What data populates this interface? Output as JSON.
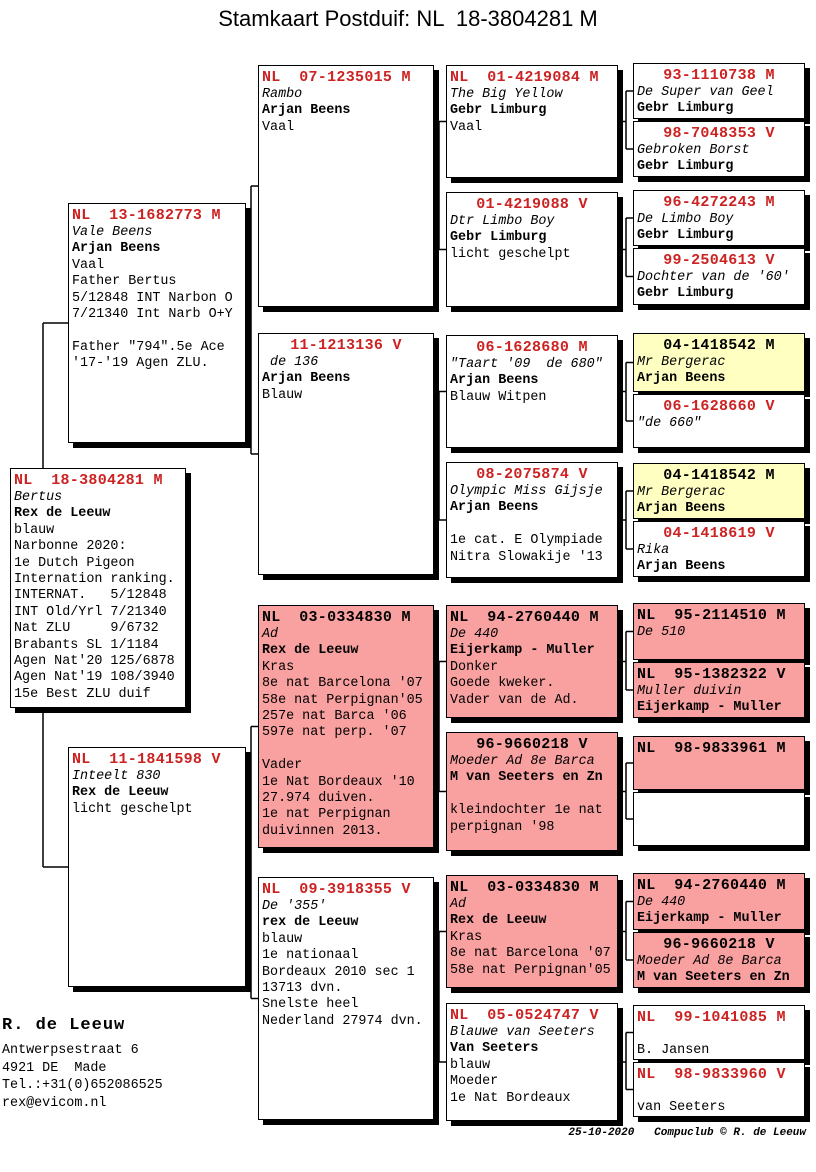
{
  "title": "Stamkaart Postduif: NL  18-3804281 M",
  "colors": {
    "header_red": "#CC2222",
    "box_pink": "#F9A0A0",
    "box_yellow": "#FFFFC2",
    "line_black": "#000000"
  },
  "owner": {
    "name": "R. de Leeuw",
    "address1": "Antwerpsestraat 6",
    "address2": "4921 DE  Made",
    "phone": "Tel.:+31(0)652086525",
    "email": "rex@evicom.nl"
  },
  "footer": {
    "date": "25-10-2020",
    "credit": "Compuclub © R. de Leeuw"
  },
  "boxes": [
    {
      "id": "g1",
      "header": "NL  18-3804281 M",
      "hc": "red",
      "bg": "white",
      "lines": [
        [
          "i",
          "Bertus"
        ],
        [
          "b",
          "Rex de Leeuw"
        ],
        [
          "n",
          "blauw"
        ],
        [
          "n",
          "Narbonne 2020:"
        ],
        [
          "n",
          "1e Dutch Pigeon"
        ],
        [
          "n",
          "Internation ranking."
        ],
        [
          "n",
          "INTERNAT.   5/12848"
        ],
        [
          "n",
          "INT Old/Yrl 7/21340"
        ],
        [
          "n",
          "Nat ZLU     9/6732"
        ],
        [
          "n",
          "Brabants SL 1/1184"
        ],
        [
          "n",
          "Agen Nat'20 125/6878"
        ],
        [
          "n",
          "Agen Nat'19 108/3940"
        ],
        [
          "n",
          "15e Best ZLU duif"
        ]
      ]
    },
    {
      "id": "g2a",
      "header": "NL  13-1682773 M",
      "hc": "red",
      "bg": "white",
      "lines": [
        [
          "i",
          "Vale Beens"
        ],
        [
          "b",
          "Arjan Beens"
        ],
        [
          "n",
          "Vaal"
        ],
        [
          "n",
          "Father Bertus"
        ],
        [
          "n",
          "5/12848 INT Narbon O"
        ],
        [
          "n",
          "7/21340 Int Narb O+Y"
        ],
        [
          "n",
          ""
        ],
        [
          "n",
          "Father \"794\".5e Ace"
        ],
        [
          "n",
          "'17-'19 Agen ZLU."
        ]
      ]
    },
    {
      "id": "g2b",
      "header": "NL  11-1841598 V",
      "hc": "red",
      "bg": "white",
      "lines": [
        [
          "i",
          "Inteelt 830"
        ],
        [
          "b",
          "Rex de Leeuw"
        ],
        [
          "n",
          "licht geschelpt"
        ]
      ]
    },
    {
      "id": "g3a",
      "header": "NL  07-1235015 M",
      "hc": "red",
      "bg": "white",
      "lines": [
        [
          "i",
          "Rambo"
        ],
        [
          "b",
          "Arjan Beens"
        ],
        [
          "n",
          "Vaal"
        ]
      ]
    },
    {
      "id": "g3b",
      "header": "    11-1213136 V",
      "hc": "red",
      "bg": "white",
      "lines": [
        [
          "i",
          " de 136"
        ],
        [
          "b",
          "Arjan Beens"
        ],
        [
          "n",
          "Blauw"
        ]
      ]
    },
    {
      "id": "g3c",
      "header": "NL  03-0334830 M",
      "hc": "black",
      "bg": "pink",
      "lines": [
        [
          "i",
          "Ad"
        ],
        [
          "b",
          "Rex de Leeuw"
        ],
        [
          "n",
          "Kras"
        ],
        [
          "n",
          "8e nat Barcelona '07"
        ],
        [
          "n",
          "58e nat Perpignan'05"
        ],
        [
          "n",
          "257e nat Barca '06"
        ],
        [
          "n",
          "597e nat perp. '07"
        ],
        [
          "n",
          ""
        ],
        [
          "n",
          "Vader"
        ],
        [
          "n",
          "1e Nat Bordeaux '10"
        ],
        [
          "n",
          "27.974 duiven."
        ],
        [
          "n",
          "1e nat Perpignan"
        ],
        [
          "n",
          "duivinnen 2013."
        ]
      ]
    },
    {
      "id": "g3d",
      "header": "NL  09-3918355 V",
      "hc": "red",
      "bg": "white",
      "lines": [
        [
          "i",
          "De '355'"
        ],
        [
          "b",
          "rex de Leeuw"
        ],
        [
          "n",
          "blauw"
        ],
        [
          "n",
          "1e nationaal"
        ],
        [
          "n",
          "Bordeaux 2010 sec 1"
        ],
        [
          "n",
          "13713 dvn."
        ],
        [
          "n",
          "Snelste heel"
        ],
        [
          "n",
          "Nederland 27974 dvn."
        ]
      ]
    },
    {
      "id": "g4a",
      "header": "NL  01-4219084 M",
      "hc": "red",
      "bg": "white",
      "lines": [
        [
          "i",
          "The Big Yellow"
        ],
        [
          "b",
          "Gebr Limburg"
        ],
        [
          "n",
          "Vaal"
        ]
      ]
    },
    {
      "id": "g4b",
      "header": "    01-4219088 V",
      "hc": "red",
      "bg": "white",
      "lines": [
        [
          "i",
          "Dtr Limbo Boy"
        ],
        [
          "b",
          "Gebr Limburg"
        ],
        [
          "n",
          "licht geschelpt"
        ]
      ]
    },
    {
      "id": "g4c",
      "header": "   06-1628680 M",
      "hc": "red",
      "bg": "white",
      "lines": [
        [
          "i",
          "\"Taart '09  de 680\""
        ],
        [
          "b",
          "Arjan Beens"
        ],
        [
          "n",
          "Blauw Witpen"
        ]
      ]
    },
    {
      "id": "g4d",
      "header": "   08-2075874 V",
      "hc": "red",
      "bg": "white",
      "lines": [
        [
          "i",
          "Olympic Miss Gijsje"
        ],
        [
          "b",
          "Arjan Beens"
        ],
        [
          "n",
          ""
        ],
        [
          "n",
          "1e cat. E Olympiade"
        ],
        [
          "n",
          "Nitra Slowakije '13"
        ]
      ]
    },
    {
      "id": "g4e",
      "header": "NL  94-2760440 M",
      "hc": "black",
      "bg": "pink",
      "lines": [
        [
          "i",
          "De 440"
        ],
        [
          "b",
          "Eijerkamp - Muller"
        ],
        [
          "n",
          "Donker"
        ],
        [
          "n",
          "Goede kweker."
        ],
        [
          "n",
          "Vader van de Ad."
        ]
      ]
    },
    {
      "id": "g4f",
      "header": "    96-9660218 V",
      "hc": "black",
      "bg": "pink",
      "lines": [
        [
          "i",
          "Moeder Ad 8e Barca"
        ],
        [
          "b",
          "M van Seeters en Zn"
        ],
        [
          "n",
          ""
        ],
        [
          "n",
          "kleindochter 1e nat"
        ],
        [
          "n",
          "perpignan '98"
        ]
      ]
    },
    {
      "id": "g4g",
      "header": "NL  03-0334830 M",
      "hc": "black",
      "bg": "pink",
      "lines": [
        [
          "i",
          "Ad"
        ],
        [
          "b",
          "Rex de Leeuw"
        ],
        [
          "n",
          "Kras"
        ],
        [
          "n",
          "8e nat Barcelona '07"
        ],
        [
          "n",
          "58e nat Perpignan'05"
        ]
      ]
    },
    {
      "id": "g4h",
      "header": "NL  05-0524747 V",
      "hc": "red",
      "bg": "white",
      "lines": [
        [
          "i",
          "Blauwe van Seeters"
        ],
        [
          "b",
          "Van Seeters"
        ],
        [
          "n",
          "blauw"
        ],
        [
          "n",
          "Moeder"
        ],
        [
          "n",
          "1e Nat Bordeaux"
        ]
      ]
    },
    {
      "id": "g5a",
      "header": "   93-1110738 M",
      "hc": "red",
      "bg": "white",
      "lines": [
        [
          "i",
          "De Super van Geel"
        ],
        [
          "b",
          "Gebr Limburg"
        ]
      ]
    },
    {
      "id": "g5b",
      "header": "   98-7048353 V",
      "hc": "red",
      "bg": "white",
      "lines": [
        [
          "i",
          "Gebroken Borst"
        ],
        [
          "b",
          "Gebr Limburg"
        ]
      ]
    },
    {
      "id": "g5c",
      "header": "   96-4272243 M",
      "hc": "red",
      "bg": "white",
      "lines": [
        [
          "i",
          "De Limbo Boy"
        ],
        [
          "b",
          "Gebr Limburg"
        ]
      ]
    },
    {
      "id": "g5d",
      "header": "   99-2504613 V",
      "hc": "red",
      "bg": "white",
      "lines": [
        [
          "i",
          "Dochter van de '60'"
        ],
        [
          "b",
          "Gebr Limburg"
        ]
      ]
    },
    {
      "id": "g5e",
      "header": "   04-1418542 M",
      "hc": "black",
      "bg": "yellow",
      "lines": [
        [
          "i",
          "Mr Bergerac"
        ],
        [
          "b",
          "Arjan Beens"
        ]
      ]
    },
    {
      "id": "g5f",
      "header": "   06-1628660 V",
      "hc": "red",
      "bg": "white",
      "lines": [
        [
          "i",
          "\"de 660\""
        ]
      ]
    },
    {
      "id": "g5g",
      "header": "   04-1418542 M",
      "hc": "black",
      "bg": "yellow",
      "lines": [
        [
          "i",
          "Mr Bergerac"
        ],
        [
          "b",
          "Arjan Beens"
        ]
      ]
    },
    {
      "id": "g5h",
      "header": "   04-1418619 V",
      "hc": "red",
      "bg": "white",
      "lines": [
        [
          "i",
          "Rika"
        ],
        [
          "b",
          "Arjan Beens"
        ]
      ]
    },
    {
      "id": "g5i",
      "header": "NL  95-2114510 M",
      "hc": "black",
      "bg": "pink",
      "lines": [
        [
          "i",
          "De 510"
        ]
      ]
    },
    {
      "id": "g5j",
      "header": "NL  95-1382322 V",
      "hc": "black",
      "bg": "pink",
      "lines": [
        [
          "i",
          "Muller duivin"
        ],
        [
          "b",
          "Eijerkamp - Muller"
        ]
      ]
    },
    {
      "id": "g5k",
      "header": "NL  98-9833961 M",
      "hc": "black",
      "bg": "pink",
      "lines": []
    },
    {
      "id": "g5l",
      "header": "",
      "hc": "black",
      "bg": "white",
      "lines": []
    },
    {
      "id": "g5m",
      "header": "NL  94-2760440 M",
      "hc": "black",
      "bg": "pink",
      "lines": [
        [
          "i",
          "De 440"
        ],
        [
          "b",
          "Eijerkamp - Muller"
        ]
      ]
    },
    {
      "id": "g5n",
      "header": "    96-9660218 V",
      "hc": "black",
      "bg": "pink",
      "lines": [
        [
          "i",
          "Moeder Ad 8e Barca"
        ],
        [
          "b",
          "M van Seeters en Zn"
        ]
      ]
    },
    {
      "id": "g5o",
      "header": "NL  99-1041085 M",
      "hc": "red",
      "bg": "white",
      "lines": [
        [
          "n",
          ""
        ],
        [
          "n",
          "B. Jansen"
        ]
      ]
    },
    {
      "id": "g5p",
      "header": "NL  98-9833960 V",
      "hc": "red",
      "bg": "white",
      "lines": [
        [
          "n",
          ""
        ],
        [
          "n",
          "van Seeters"
        ]
      ]
    }
  ]
}
